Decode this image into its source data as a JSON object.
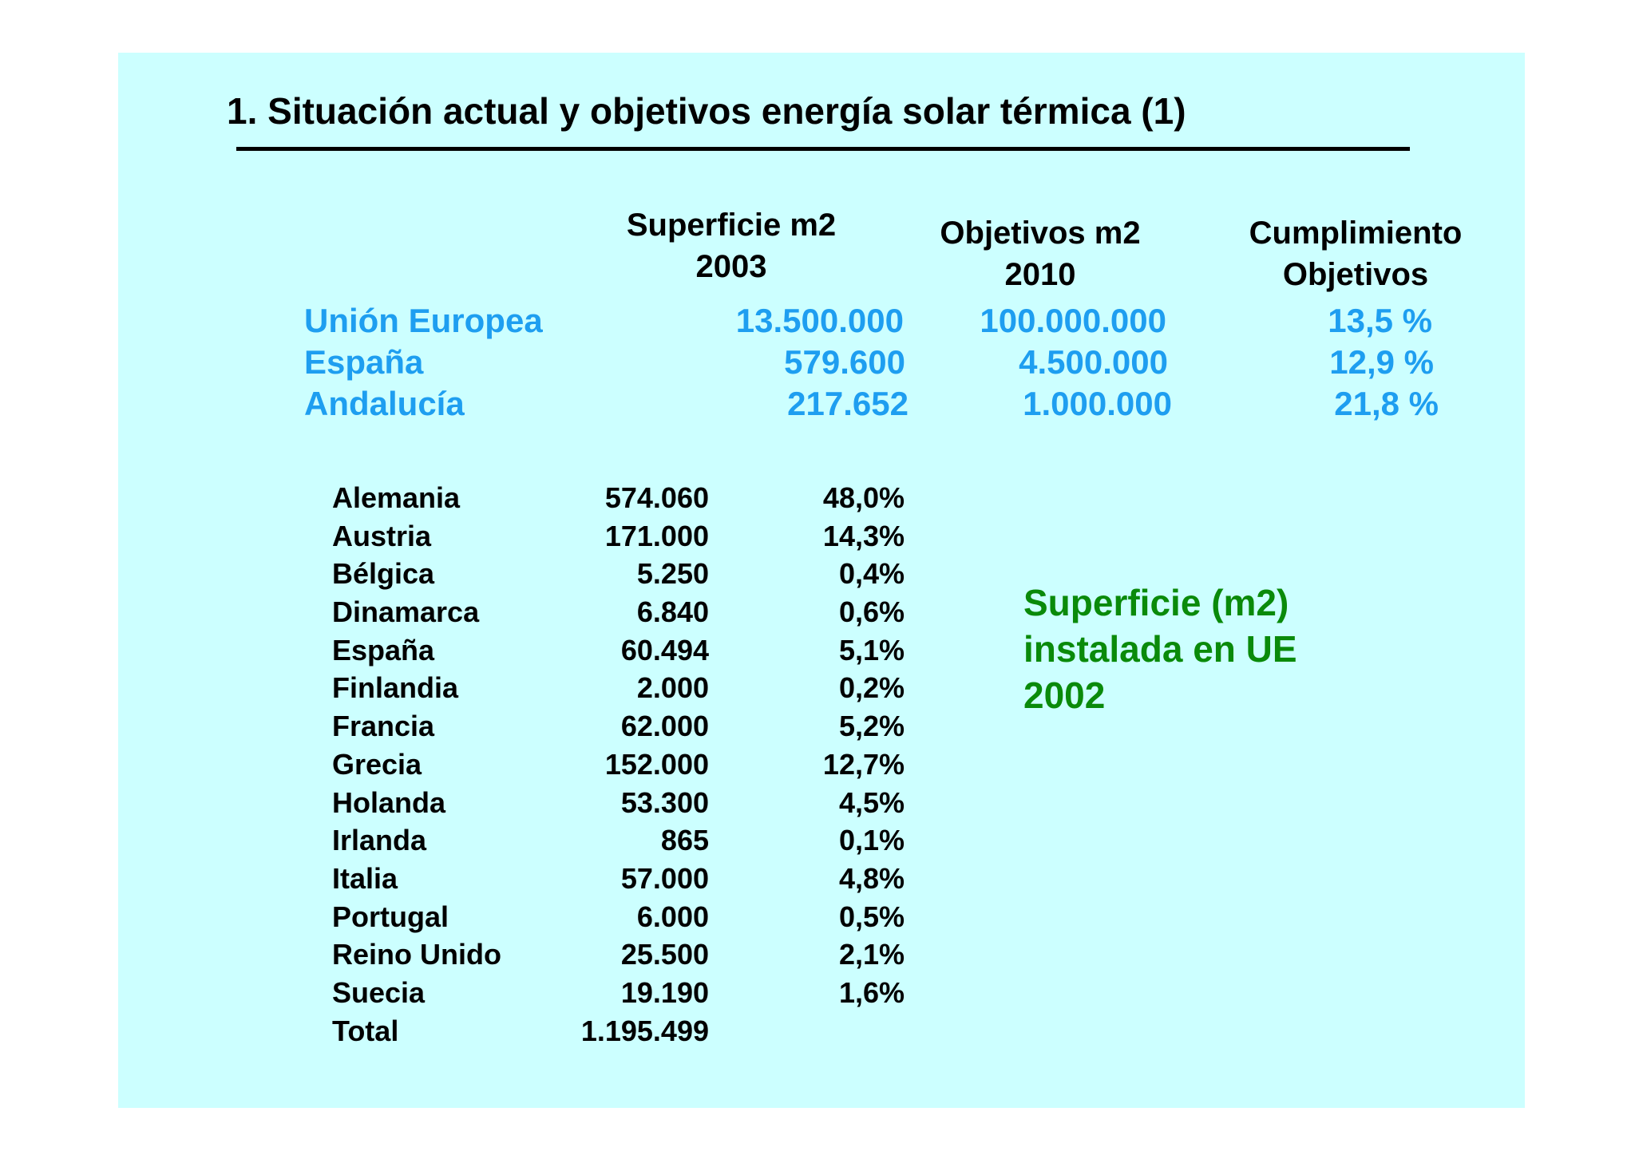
{
  "title": "1.  Situación actual y objetivos energía solar térmica (1)",
  "headers": {
    "superficie": [
      "Superficie m2",
      "2003"
    ],
    "objetivos": [
      "Objetivos m2",
      "2010"
    ],
    "cumplimiento": [
      "Cumplimiento",
      "Objetivos"
    ]
  },
  "summary": [
    {
      "region": "Unión Europea",
      "superficie": "13.500.000",
      "objetivos": "100.000.000",
      "cumplimiento": "13,5 %"
    },
    {
      "region": "España",
      "superficie": "579.600",
      "objetivos": "4.500.000",
      "cumplimiento": "12,9 %"
    },
    {
      "region": "Andalucía",
      "superficie": "217.652",
      "objetivos": "1.000.000",
      "cumplimiento": "21,8 %"
    }
  ],
  "countries": [
    {
      "name": "Alemania",
      "value": "574.060",
      "pct": "48,0%"
    },
    {
      "name": "Austria",
      "value": "171.000",
      "pct": "14,3%"
    },
    {
      "name": "Bélgica",
      "value": "5.250",
      "pct": "0,4%"
    },
    {
      "name": "Dinamarca",
      "value": "6.840",
      "pct": "0,6%"
    },
    {
      "name": "España",
      "value": "60.494",
      "pct": "5,1%"
    },
    {
      "name": "Finlandia",
      "value": "2.000",
      "pct": "0,2%"
    },
    {
      "name": "Francia",
      "value": "62.000",
      "pct": "5,2%"
    },
    {
      "name": "Grecia",
      "value": "152.000",
      "pct": "12,7%"
    },
    {
      "name": "Holanda",
      "value": "53.300",
      "pct": "4,5%"
    },
    {
      "name": "Irlanda",
      "value": "865",
      "pct": "0,1%"
    },
    {
      "name": "Italia",
      "value": "57.000",
      "pct": "4,8%"
    },
    {
      "name": "Portugal",
      "value": "6.000",
      "pct": "0,5%"
    },
    {
      "name": "Reino Unido",
      "value": "25.500",
      "pct": "2,1%"
    },
    {
      "name": "Suecia",
      "value": "19.190",
      "pct": "1,6%"
    },
    {
      "name": "Total",
      "value": "1.195.499",
      "pct": ""
    }
  ],
  "note": [
    "Superficie (m2)",
    "instalada en  UE",
    "2002"
  ],
  "colors": {
    "background": "#ccffff",
    "blue": "#1e9ef0",
    "green": "#0a8a0a"
  }
}
